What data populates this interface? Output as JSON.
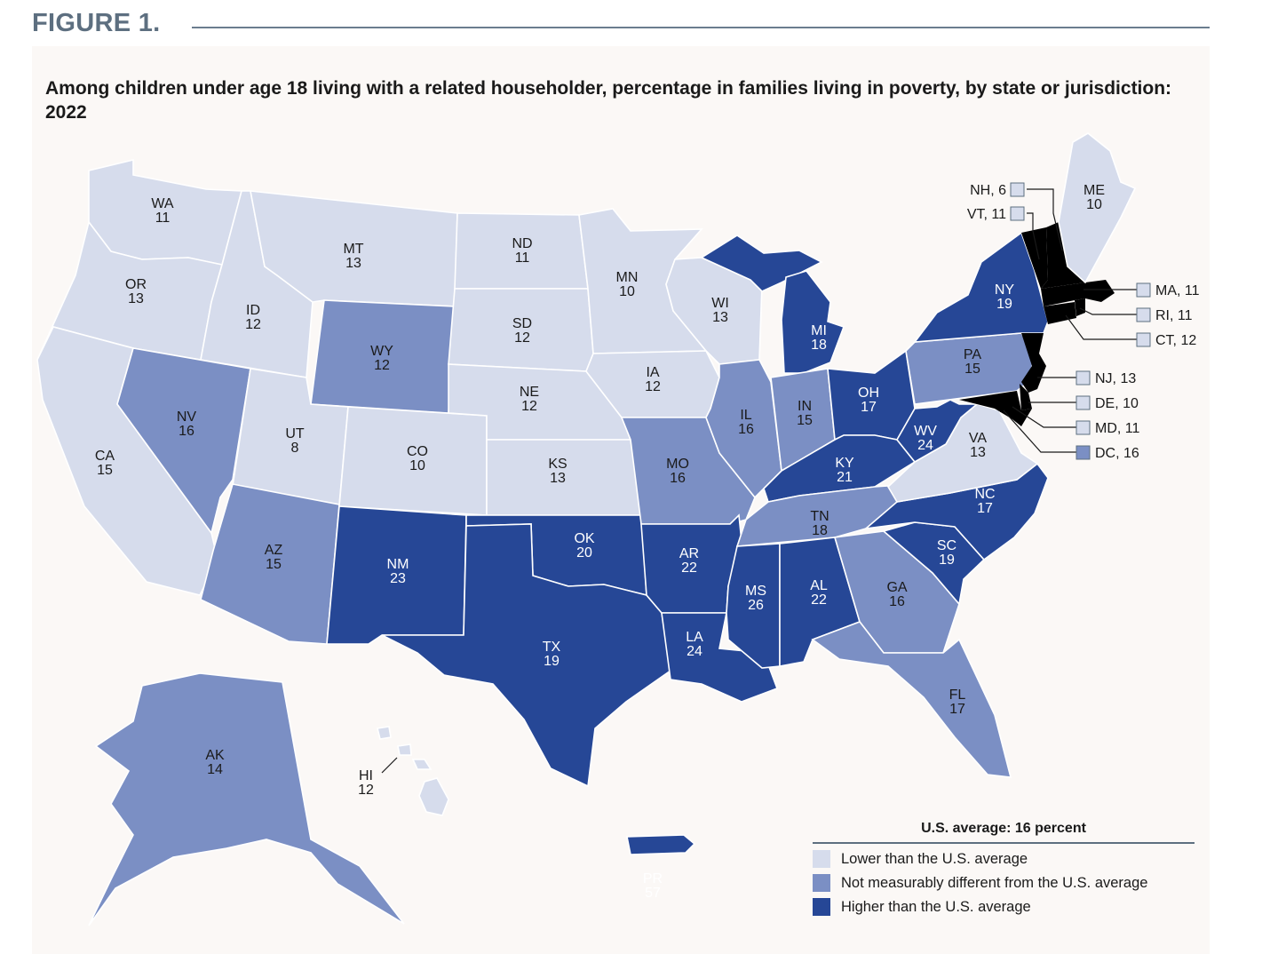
{
  "figure_label": "FIGURE 1.",
  "title": "Among children under age 18 living with a related householder, percentage in families living in poverty, by state or jurisdiction: 2022",
  "colors": {
    "lower": "#d6dcec",
    "not_different": "#7b8fc4",
    "higher": "#264796"
  },
  "legend": {
    "title": "U.S. average: 16 percent",
    "items": [
      {
        "label": "Lower than the U.S. average",
        "category": "lower"
      },
      {
        "label": "Not measurably different from the U.S. average",
        "category": "not_different"
      },
      {
        "label": "Higher than the U.S. average",
        "category": "higher"
      }
    ]
  },
  "states": {
    "WA": {
      "value": "11",
      "category": "lower"
    },
    "OR": {
      "value": "13",
      "category": "lower"
    },
    "CA": {
      "value": "15",
      "category": "lower"
    },
    "ID": {
      "value": "12",
      "category": "lower"
    },
    "NV": {
      "value": "16",
      "category": "not_different"
    },
    "MT": {
      "value": "13",
      "category": "lower"
    },
    "WY": {
      "value": "12",
      "category": "not_different"
    },
    "UT": {
      "value": "8",
      "category": "lower"
    },
    "AZ": {
      "value": "15",
      "category": "not_different"
    },
    "CO": {
      "value": "10",
      "category": "lower"
    },
    "NM": {
      "value": "23",
      "category": "higher"
    },
    "ND": {
      "value": "11",
      "category": "lower"
    },
    "SD": {
      "value": "12",
      "category": "lower"
    },
    "NE": {
      "value": "12",
      "category": "lower"
    },
    "KS": {
      "value": "13",
      "category": "lower"
    },
    "OK": {
      "value": "20",
      "category": "higher"
    },
    "TX": {
      "value": "19",
      "category": "higher"
    },
    "MN": {
      "value": "10",
      "category": "lower"
    },
    "IA": {
      "value": "12",
      "category": "lower"
    },
    "MO": {
      "value": "16",
      "category": "not_different"
    },
    "AR": {
      "value": "22",
      "category": "higher"
    },
    "LA": {
      "value": "24",
      "category": "higher"
    },
    "WI": {
      "value": "13",
      "category": "lower"
    },
    "IL": {
      "value": "16",
      "category": "not_different"
    },
    "MI": {
      "value": "18",
      "category": "higher"
    },
    "IN": {
      "value": "15",
      "category": "not_different"
    },
    "OH": {
      "value": "17",
      "category": "higher"
    },
    "KY": {
      "value": "21",
      "category": "higher"
    },
    "TN": {
      "value": "18",
      "category": "not_different"
    },
    "MS": {
      "value": "26",
      "category": "higher"
    },
    "AL": {
      "value": "22",
      "category": "higher"
    },
    "GA": {
      "value": "16",
      "category": "not_different"
    },
    "FL": {
      "value": "17",
      "category": "not_different"
    },
    "SC": {
      "value": "19",
      "category": "higher"
    },
    "NC": {
      "value": "17",
      "category": "higher"
    },
    "VA": {
      "value": "13",
      "category": "lower"
    },
    "WV": {
      "value": "24",
      "category": "higher"
    },
    "PA": {
      "value": "15",
      "category": "not_different"
    },
    "NY": {
      "value": "19",
      "category": "higher"
    },
    "ME": {
      "value": "10",
      "category": "lower"
    },
    "AK": {
      "value": "14",
      "category": "not_different"
    },
    "HI": {
      "value": "12",
      "category": "lower"
    },
    "PR": {
      "value": "57",
      "category": "higher"
    }
  },
  "small_states": [
    {
      "label": "NH, 6",
      "category": "lower"
    },
    {
      "label": "VT, 11",
      "category": "lower"
    },
    {
      "label": "MA, 11",
      "category": "lower"
    },
    {
      "label": "RI, 11",
      "category": "lower"
    },
    {
      "label": "CT, 12",
      "category": "lower"
    },
    {
      "label": "NJ, 13",
      "category": "lower"
    },
    {
      "label": "DE, 10",
      "category": "lower"
    },
    {
      "label": "MD, 11",
      "category": "lower"
    },
    {
      "label": "DC, 16",
      "category": "not_different"
    }
  ]
}
